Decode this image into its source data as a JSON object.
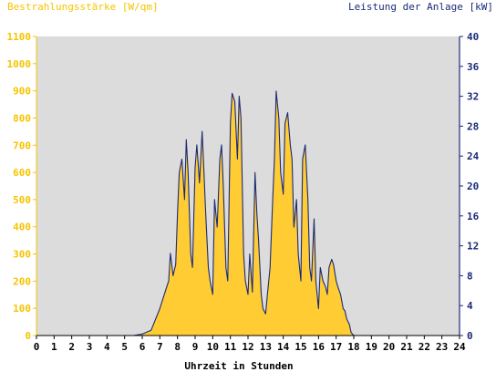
{
  "chart_data": {
    "type": "area",
    "title_left": "Bestrahlungsstärke [W/qm]",
    "title_right": "Leistung der Anlage [kW]",
    "xlabel": "Uhrzeit in Stunden",
    "xlim": [
      0,
      24
    ],
    "x_ticks": [
      "0",
      "1",
      "2",
      "3",
      "4",
      "5",
      "6",
      "7",
      "8",
      "9",
      "10",
      "11",
      "12",
      "13",
      "14",
      "15",
      "16",
      "17",
      "18",
      "19",
      "20",
      "21",
      "22",
      "23",
      "24"
    ],
    "ylim_left": [
      0,
      1100
    ],
    "y_left_ticks": [
      "0",
      "100",
      "200",
      "300",
      "400",
      "500",
      "600",
      "700",
      "800",
      "900",
      "1000",
      "1100"
    ],
    "ylim_right": [
      0,
      40
    ],
    "y_right_ticks": [
      "0",
      "4",
      "8",
      "12",
      "16",
      "20",
      "24",
      "28",
      "32",
      "36",
      "40"
    ],
    "grid": false,
    "colors": {
      "irradiance_fill": "#ffcc33",
      "power_line": "#1a2a78",
      "left_axis_text": "#f5c400",
      "right_axis_text": "#1a2a78",
      "plot_background": "#dcdcdc",
      "x_axis_text": "#000000"
    },
    "series": [
      {
        "name": "Bestrahlungsstärke [W/qm]",
        "axis": "left",
        "style": "filled-area",
        "x": [
          5.5,
          6.0,
          6.5,
          7.0,
          7.25,
          7.5,
          7.6,
          7.75,
          7.9,
          8.0,
          8.1,
          8.25,
          8.4,
          8.5,
          8.6,
          8.75,
          8.85,
          9.0,
          9.1,
          9.25,
          9.4,
          9.5,
          9.6,
          9.75,
          9.85,
          10.0,
          10.1,
          10.25,
          10.4,
          10.5,
          10.6,
          10.75,
          10.85,
          11.0,
          11.1,
          11.25,
          11.4,
          11.5,
          11.6,
          11.75,
          11.85,
          12.0,
          12.1,
          12.25,
          12.4,
          12.5,
          12.6,
          12.75,
          12.85,
          13.0,
          13.1,
          13.25,
          13.4,
          13.5,
          13.6,
          13.75,
          13.85,
          14.0,
          14.1,
          14.25,
          14.4,
          14.5,
          14.6,
          14.75,
          14.85,
          15.0,
          15.1,
          15.25,
          15.4,
          15.5,
          15.6,
          15.75,
          15.85,
          16.0,
          16.1,
          16.25,
          16.4,
          16.5,
          16.6,
          16.75,
          16.85,
          17.0,
          17.1,
          17.25,
          17.4,
          17.5,
          17.6,
          17.75,
          17.85,
          18.0,
          18.1,
          18.25,
          18.4,
          18.5,
          18.6,
          18.75,
          18.85,
          19.0,
          19.1,
          19.25,
          19.5,
          19.75,
          20.0
        ],
        "values": [
          0,
          5,
          20,
          100,
          150,
          200,
          300,
          220,
          260,
          450,
          600,
          650,
          500,
          720,
          600,
          300,
          250,
          620,
          700,
          560,
          750,
          600,
          450,
          250,
          200,
          150,
          500,
          400,
          650,
          700,
          550,
          250,
          200,
          780,
          890,
          860,
          650,
          880,
          800,
          300,
          200,
          150,
          300,
          160,
          600,
          450,
          350,
          150,
          100,
          80,
          150,
          250,
          500,
          650,
          900,
          800,
          600,
          520,
          780,
          820,
          700,
          650,
          400,
          500,
          300,
          200,
          650,
          700,
          500,
          250,
          200,
          430,
          200,
          100,
          250,
          200,
          180,
          150,
          250,
          280,
          260,
          200,
          180,
          150,
          100,
          90,
          60,
          40,
          10,
          0,
          0,
          0,
          0,
          0,
          0,
          0,
          0,
          0,
          0,
          0,
          0,
          0,
          0
        ]
      },
      {
        "name": "Leistung der Anlage [kW]",
        "axis": "right",
        "style": "line",
        "x": [
          5.5,
          6.0,
          6.5,
          7.0,
          7.25,
          7.5,
          7.6,
          7.75,
          7.9,
          8.0,
          8.1,
          8.25,
          8.4,
          8.5,
          8.6,
          8.75,
          8.85,
          9.0,
          9.1,
          9.25,
          9.4,
          9.5,
          9.6,
          9.75,
          9.85,
          10.0,
          10.1,
          10.25,
          10.4,
          10.5,
          10.6,
          10.75,
          10.85,
          11.0,
          11.1,
          11.25,
          11.4,
          11.5,
          11.6,
          11.75,
          11.85,
          12.0,
          12.1,
          12.25,
          12.4,
          12.5,
          12.6,
          12.75,
          12.85,
          13.0,
          13.1,
          13.25,
          13.4,
          13.5,
          13.6,
          13.75,
          13.85,
          14.0,
          14.1,
          14.25,
          14.4,
          14.5,
          14.6,
          14.75,
          14.85,
          15.0,
          15.1,
          15.25,
          15.4,
          15.5,
          15.6,
          15.75,
          15.85,
          16.0,
          16.1,
          16.25,
          16.4,
          16.5,
          16.6,
          16.75,
          16.85,
          17.0,
          17.1,
          17.25,
          17.4,
          17.5,
          17.6,
          17.75,
          17.85,
          18.0,
          18.1,
          18.25,
          18.4,
          18.5,
          18.6,
          18.75,
          18.85,
          19.0,
          19.1,
          19.25,
          19.5,
          19.75,
          20.0
        ],
        "values": [
          0,
          0.2,
          0.7,
          3.6,
          5.5,
          7.3,
          11.0,
          8.0,
          9.5,
          16.4,
          21.8,
          23.6,
          18.2,
          26.2,
          21.8,
          10.9,
          9.1,
          22.5,
          25.5,
          20.4,
          27.3,
          21.8,
          16.4,
          9.1,
          7.3,
          5.5,
          18.2,
          14.5,
          23.6,
          25.5,
          20.0,
          9.1,
          7.3,
          28.4,
          32.4,
          31.3,
          23.6,
          32.0,
          29.1,
          10.9,
          7.3,
          5.5,
          10.9,
          5.8,
          21.8,
          16.4,
          12.7,
          5.5,
          3.6,
          2.9,
          5.5,
          9.1,
          18.2,
          23.6,
          32.7,
          29.1,
          21.8,
          18.9,
          28.4,
          29.8,
          25.5,
          23.6,
          14.5,
          18.2,
          10.9,
          7.3,
          23.6,
          25.5,
          18.2,
          9.1,
          7.3,
          15.6,
          7.3,
          3.6,
          9.1,
          7.3,
          6.5,
          5.5,
          9.1,
          10.2,
          9.5,
          7.3,
          6.5,
          5.5,
          3.6,
          3.3,
          2.2,
          1.5,
          0.4,
          0,
          0,
          0,
          0,
          0,
          0,
          0,
          0,
          0,
          0,
          0,
          0,
          0,
          0
        ]
      }
    ]
  }
}
